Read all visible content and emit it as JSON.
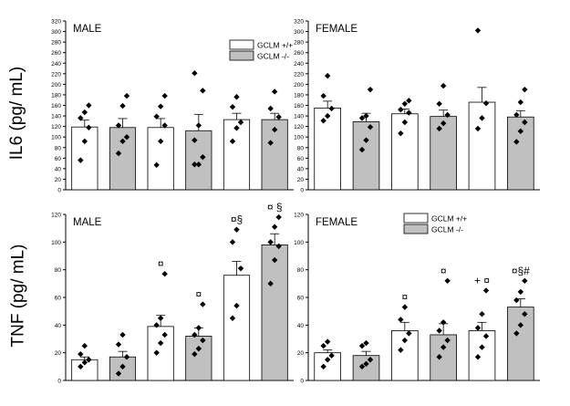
{
  "figure": {
    "row_labels": [
      "IL6 (pg/ mL)",
      "TNF (pg/ mL)"
    ]
  },
  "chart_data": [
    {
      "type": "bar",
      "title": "MALE",
      "ylabel": "IL6 (pg/ mL)",
      "ylim": [
        0,
        320
      ],
      "yticks": [
        0,
        20,
        40,
        60,
        80,
        100,
        120,
        140,
        160,
        180,
        200,
        220,
        240,
        260,
        280,
        300,
        320
      ],
      "legend": {
        "entries": [
          "GCLM +/+",
          "GCLM -/-"
        ],
        "position": "top-right"
      },
      "bars": [
        {
          "genotype": "GCLM +/+",
          "value": 119,
          "error": 13,
          "points": [
            56,
            92,
            118,
            136,
            147,
            160
          ],
          "marks": ""
        },
        {
          "genotype": "GCLM -/-",
          "value": 118,
          "error": 17,
          "points": [
            69,
            92,
            100,
            122,
            159,
            178
          ],
          "marks": ""
        },
        {
          "genotype": "GCLM +/+",
          "value": 118,
          "error": 17,
          "points": [
            47,
            92,
            122,
            139,
            158,
            178
          ],
          "marks": ""
        },
        {
          "genotype": "GCLM -/-",
          "value": 112,
          "error": 31,
          "points": [
            48,
            48,
            62,
            94,
            122,
            188,
            221
          ],
          "marks": ""
        },
        {
          "genotype": "GCLM +/+",
          "value": 133,
          "error": 12,
          "points": [
            92,
            117,
            128,
            157,
            176
          ],
          "marks": ""
        },
        {
          "genotype": "GCLM -/-",
          "value": 133,
          "error": 12,
          "points": [
            89,
            114,
            138,
            154,
            186
          ],
          "marks": ""
        }
      ]
    },
    {
      "type": "bar",
      "title": "FEMALE",
      "ylabel": "",
      "ylim": [
        0,
        320
      ],
      "yticks": [
        0,
        20,
        40,
        60,
        80,
        100,
        120,
        140,
        160,
        180,
        200,
        220,
        240,
        260,
        280,
        300,
        320
      ],
      "legend": null,
      "bars": [
        {
          "genotype": "GCLM +/+",
          "value": 155,
          "error": 13,
          "points": [
            131,
            140,
            154,
            178,
            216
          ],
          "marks": ""
        },
        {
          "genotype": "GCLM -/-",
          "value": 129,
          "error": 16,
          "points": [
            76,
            94,
            119,
            136,
            140,
            190
          ],
          "marks": ""
        },
        {
          "genotype": "GCLM +/+",
          "value": 144,
          "error": 9,
          "points": [
            107,
            128,
            146,
            152,
            163,
            169
          ],
          "marks": ""
        },
        {
          "genotype": "GCLM -/-",
          "value": 139,
          "error": 12,
          "points": [
            116,
            126,
            142,
            163,
            197
          ],
          "marks": ""
        },
        {
          "genotype": "GCLM +/+",
          "value": 166,
          "error": 28,
          "points": [
            116,
            136,
            164,
            302
          ],
          "marks": ""
        },
        {
          "genotype": "GCLM -/-",
          "value": 138,
          "error": 12,
          "points": [
            91,
            111,
            128,
            142,
            166,
            190
          ],
          "marks": ""
        }
      ]
    },
    {
      "type": "bar",
      "title": "MALE",
      "ylabel": "TNF (pg/ mL)",
      "ylim": [
        0,
        120
      ],
      "yticks": [
        0,
        20,
        40,
        60,
        80,
        100,
        120
      ],
      "legend": null,
      "bars": [
        {
          "genotype": "GCLM +/+",
          "value": 15,
          "error": 2,
          "points": [
            10,
            13,
            15,
            19,
            25
          ],
          "marks": ""
        },
        {
          "genotype": "GCLM -/-",
          "value": 17,
          "error": 4,
          "points": [
            5,
            10,
            17,
            26,
            33
          ],
          "marks": ""
        },
        {
          "genotype": "GCLM +/+",
          "value": 39,
          "error": 8,
          "points": [
            20,
            27,
            33,
            40,
            45,
            77
          ],
          "marks": "¤"
        },
        {
          "genotype": "GCLM -/-",
          "value": 32,
          "error": 6,
          "points": [
            19,
            23,
            29,
            33,
            38,
            55
          ],
          "marks": "¤"
        },
        {
          "genotype": "GCLM +/+",
          "value": 76,
          "error": 10,
          "points": [
            45,
            54,
            81,
            100,
            109
          ],
          "marks": "¤§"
        },
        {
          "genotype": "GCLM -/-",
          "value": 98,
          "error": 8,
          "points": [
            70,
            87,
            97,
            100,
            111,
            118
          ],
          "marks": "¤ §"
        }
      ]
    },
    {
      "type": "bar",
      "title": "FEMALE",
      "ylabel": "",
      "ylim": [
        0,
        120
      ],
      "yticks": [
        0,
        20,
        40,
        60,
        80,
        100,
        120
      ],
      "legend": {
        "entries": [
          "GCLM +/+",
          "GCLM -/-"
        ],
        "position": "top-right"
      },
      "bars": [
        {
          "genotype": "GCLM +/+",
          "value": 20,
          "error": 2,
          "points": [
            10,
            15,
            18,
            25,
            28
          ],
          "marks": ""
        },
        {
          "genotype": "GCLM -/-",
          "value": 18,
          "error": 3,
          "points": [
            10,
            12,
            15,
            25,
            27
          ],
          "marks": ""
        },
        {
          "genotype": "GCLM +/+",
          "value": 36,
          "error": 6,
          "points": [
            22,
            29,
            34,
            44,
            53
          ],
          "marks": "¤"
        },
        {
          "genotype": "GCLM -/-",
          "value": 33,
          "error": 8,
          "points": [
            17,
            24,
            29,
            36,
            42,
            72
          ],
          "marks": "¤"
        },
        {
          "genotype": "GCLM +/+",
          "value": 36,
          "error": 6,
          "points": [
            17,
            24,
            32,
            38,
            48,
            65
          ],
          "marks": "+ ¤"
        },
        {
          "genotype": "GCLM -/-",
          "value": 53,
          "error": 6,
          "points": [
            34,
            40,
            48,
            58,
            64,
            72
          ],
          "marks": "¤§#"
        }
      ]
    }
  ]
}
